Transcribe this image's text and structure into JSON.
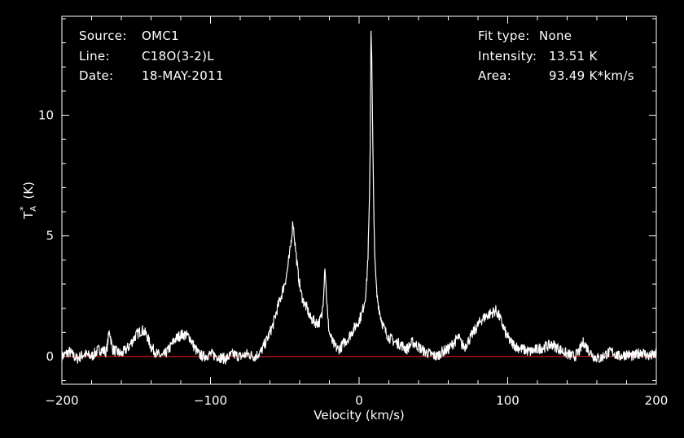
{
  "header": {
    "left": [
      {
        "label": "Source:",
        "value": "OMC1"
      },
      {
        "label": "Line:",
        "value": "C18O(3-2)L"
      },
      {
        "label": "Date:",
        "value": "18-MAY-2011"
      }
    ],
    "right": [
      {
        "label": "Fit type:",
        "value": "None"
      },
      {
        "label": "Intensity:",
        "value": "13.51 K"
      },
      {
        "label": "Area:",
        "value": "93.49 K*km/s"
      }
    ]
  },
  "colors": {
    "background": "#000000",
    "spectrum": "#ffffff",
    "baseline": "#ff2020",
    "axes": "#ffffff"
  },
  "chart_data": {
    "type": "line",
    "xlabel": "Velocity (km/s)",
    "ylabel": "T_A* (K)",
    "xlim": [
      -200,
      200
    ],
    "ylim": [
      -1.15,
      14.1
    ],
    "xticks": [
      -200,
      -100,
      0,
      100,
      200
    ],
    "yticks": [
      0,
      5,
      10
    ],
    "baseline_y": 0,
    "series": [
      {
        "x": [
          -200,
          -195,
          -190,
          -185,
          -180,
          -175,
          -170,
          -168,
          -166,
          -160,
          -155,
          -150,
          -146,
          -143,
          -140,
          -136,
          -132,
          -128,
          -124,
          -120,
          -117,
          -114,
          -111,
          -108,
          -105,
          -100,
          -95,
          -90,
          -85,
          -80,
          -75,
          -70,
          -66,
          -62,
          -58,
          -55,
          -52,
          -49,
          -47,
          -46,
          -44.5,
          -43,
          -41,
          -39,
          -37,
          -35,
          -33,
          -31,
          -29,
          -27,
          -25,
          -24,
          -23,
          -22,
          -21,
          -20,
          -18,
          -16,
          -14,
          -12,
          -10,
          -8,
          -6,
          -4,
          -2,
          0,
          2,
          4,
          5,
          6,
          7,
          7.5,
          8,
          8.5,
          9,
          10,
          11,
          12,
          14,
          16,
          18,
          20,
          24,
          28,
          32,
          36,
          40,
          44,
          48,
          52,
          56,
          60,
          64,
          67,
          69,
          71,
          74,
          78,
          82,
          86,
          89,
          92,
          94,
          96,
          99,
          102,
          106,
          110,
          115,
          120,
          125,
          130,
          135,
          140,
          145,
          148,
          151,
          154,
          158,
          162,
          166,
          170,
          175,
          180,
          185,
          190,
          195,
          200
        ],
        "y": [
          0.0,
          0.2,
          -0.1,
          0.1,
          0.0,
          0.3,
          0.2,
          1.1,
          0.3,
          0.1,
          0.4,
          0.9,
          1.1,
          0.9,
          0.4,
          0.1,
          0.0,
          0.3,
          0.7,
          0.9,
          0.9,
          0.8,
          0.4,
          0.1,
          0.0,
          0.1,
          0.0,
          -0.1,
          0.1,
          0.0,
          0.1,
          0.0,
          0.2,
          0.7,
          1.3,
          2.0,
          2.6,
          3.3,
          4.1,
          4.6,
          5.6,
          4.6,
          3.4,
          2.6,
          2.2,
          2.0,
          1.6,
          1.5,
          1.4,
          1.4,
          1.7,
          2.5,
          3.8,
          2.6,
          1.5,
          1.0,
          0.6,
          0.4,
          0.3,
          0.4,
          0.6,
          0.7,
          0.9,
          1.1,
          1.3,
          1.5,
          1.8,
          2.4,
          3.0,
          4.2,
          6.5,
          9.0,
          13.51,
          12.6,
          9.8,
          5.5,
          3.5,
          2.5,
          1.8,
          1.3,
          1.0,
          0.8,
          0.6,
          0.5,
          0.3,
          0.6,
          0.4,
          0.2,
          0.1,
          0.0,
          0.2,
          0.3,
          0.6,
          0.8,
          0.5,
          0.4,
          0.7,
          1.1,
          1.5,
          1.7,
          1.8,
          1.9,
          1.7,
          1.4,
          0.9,
          0.6,
          0.4,
          0.3,
          0.2,
          0.3,
          0.4,
          0.5,
          0.3,
          0.1,
          0.0,
          0.2,
          0.6,
          0.3,
          0.0,
          -0.1,
          0.1,
          0.2,
          0.0,
          0.1,
          0.0,
          0.2,
          0.0,
          0.1
        ]
      }
    ]
  }
}
